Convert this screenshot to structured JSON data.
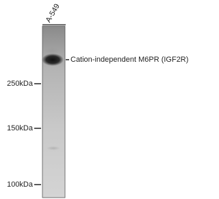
{
  "lane": {
    "label": "A-549"
  },
  "band": {
    "label": "Cation-independent M6PR (IGF2R)"
  },
  "markers": [
    "250kDa",
    "150kDa",
    "100kDa"
  ]
}
